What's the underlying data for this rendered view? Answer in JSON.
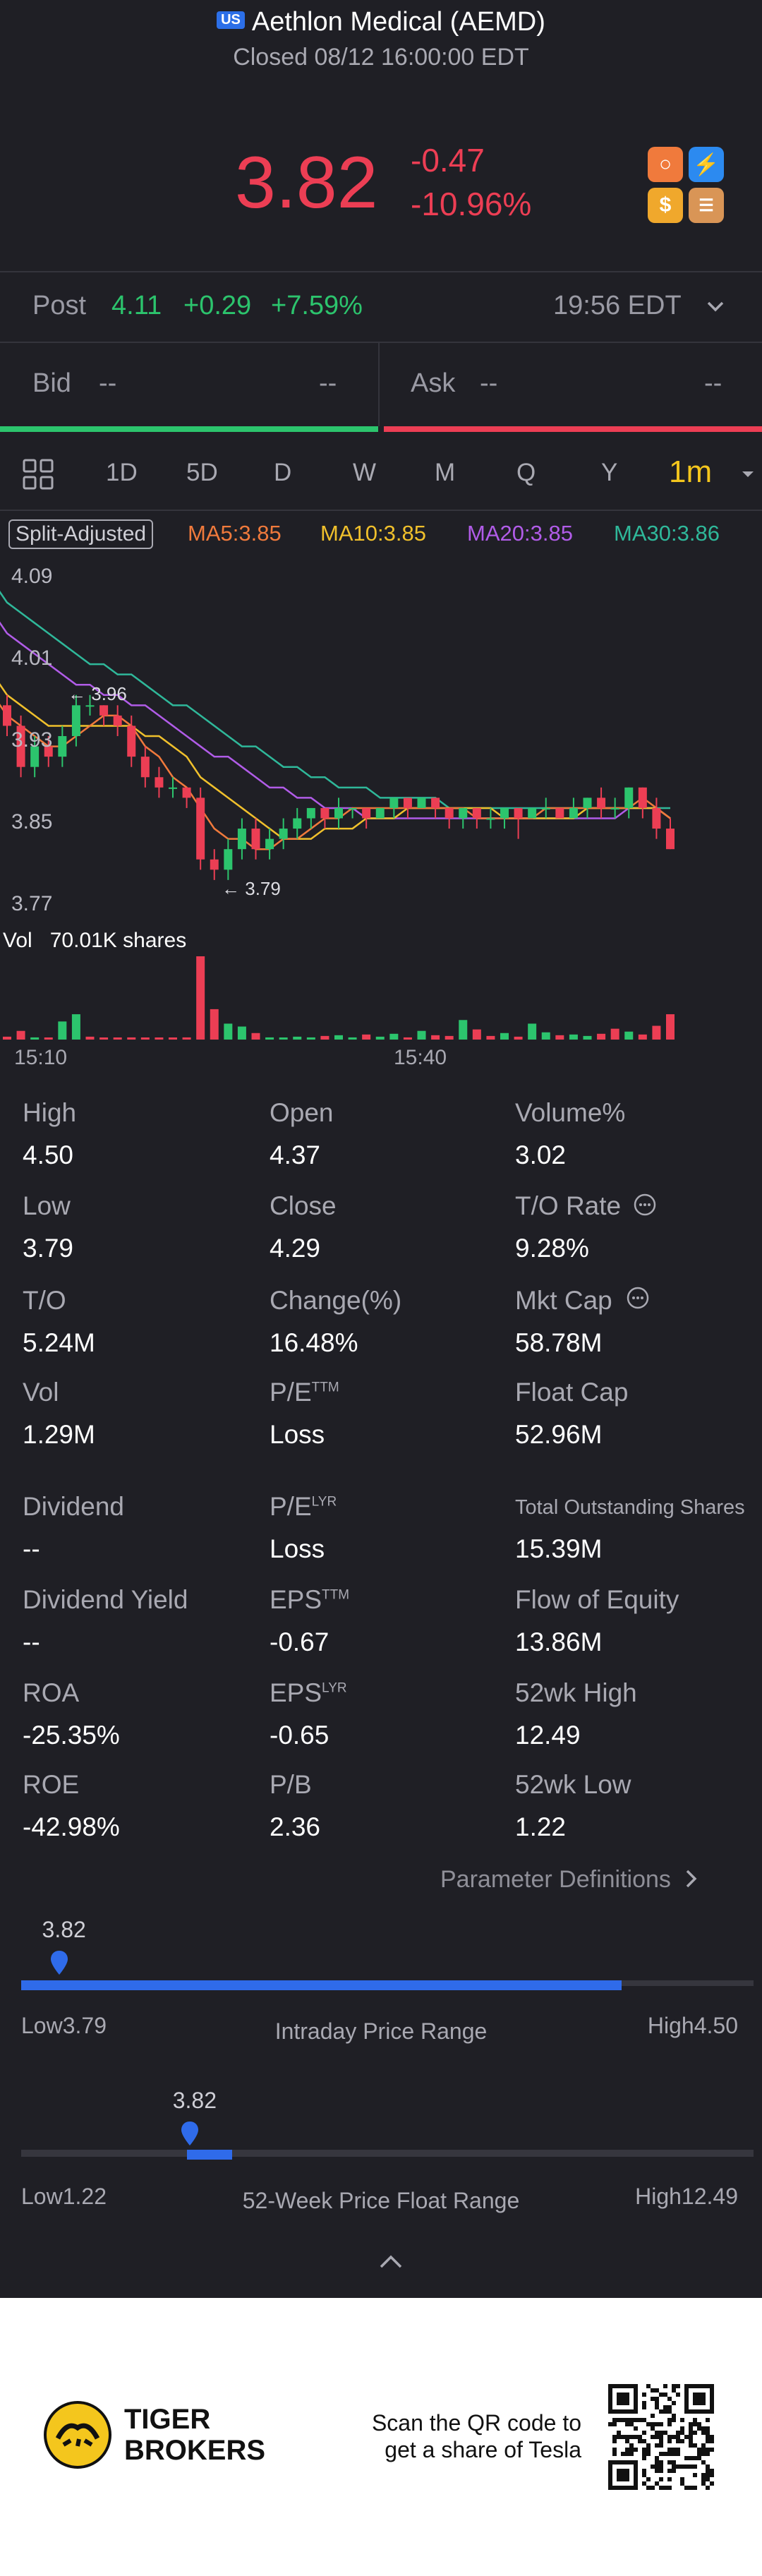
{
  "header": {
    "market_badge": "US",
    "title": "Aethlon Medical (AEMD)",
    "subtitle": "Closed 08/12 16:00:00 EDT"
  },
  "quote": {
    "price": "3.82",
    "change": "-0.47",
    "change_pct": "-10.96%",
    "color_down": "#ec3e54",
    "color_up": "#2cc46d"
  },
  "app_icons": [
    "moomoo-icon",
    "flash-icon",
    "dollar-icon",
    "books-icon"
  ],
  "post_market": {
    "label": "Post",
    "price": "4.11",
    "change": "+0.29",
    "change_pct": "+7.59%",
    "time": "19:56 EDT"
  },
  "bid_ask": {
    "bid_label": "Bid",
    "bid_price": "--",
    "bid_size": "--",
    "ask_label": "Ask",
    "ask_price": "--",
    "ask_size": "--",
    "bid_ratio": 0.5
  },
  "tabs": [
    "1D",
    "5D",
    "D",
    "W",
    "M",
    "Q",
    "Y",
    "1m"
  ],
  "active_tab": "1m",
  "chart_legend": {
    "adjust_label": "Split-Adjusted",
    "ma5": "MA5:3.85",
    "ma10": "MA10:3.85",
    "ma20": "MA20:3.85",
    "ma30": "MA30:3.86",
    "ma5_color": "#f07a3c",
    "ma10_color": "#f0c02c",
    "ma20_color": "#b15ce8",
    "ma30_color": "#2fb89a"
  },
  "volume_label": {
    "vol": "Vol",
    "amount": "70.01K shares"
  },
  "chart_data": {
    "type": "candlestick",
    "y_ticks": [
      "4.09",
      "4.01",
      "3.93",
      "3.85",
      "3.77"
    ],
    "ylim": [
      3.77,
      4.09
    ],
    "x_ticks": [
      "15:10",
      "15:40"
    ],
    "annotations": [
      {
        "label": "3.96",
        "price": 3.96
      },
      {
        "label": "3.79",
        "price": 3.79
      }
    ],
    "candles": [
      {
        "o": 3.96,
        "c": 3.94,
        "h": 3.97,
        "l": 3.93
      },
      {
        "o": 3.94,
        "c": 3.9,
        "h": 3.95,
        "l": 3.89
      },
      {
        "o": 3.9,
        "c": 3.92,
        "h": 3.93,
        "l": 3.89
      },
      {
        "o": 3.92,
        "c": 3.91,
        "h": 3.93,
        "l": 3.9
      },
      {
        "o": 3.91,
        "c": 3.93,
        "h": 3.94,
        "l": 3.9
      },
      {
        "o": 3.93,
        "c": 3.96,
        "h": 3.97,
        "l": 3.92
      },
      {
        "o": 3.96,
        "c": 3.96,
        "h": 3.97,
        "l": 3.95
      },
      {
        "o": 3.96,
        "c": 3.95,
        "h": 3.96,
        "l": 3.94
      },
      {
        "o": 3.95,
        "c": 3.94,
        "h": 3.96,
        "l": 3.93
      },
      {
        "o": 3.94,
        "c": 3.91,
        "h": 3.95,
        "l": 3.9
      },
      {
        "o": 3.91,
        "c": 3.89,
        "h": 3.92,
        "l": 3.88
      },
      {
        "o": 3.89,
        "c": 3.88,
        "h": 3.9,
        "l": 3.87
      },
      {
        "o": 3.88,
        "c": 3.88,
        "h": 3.89,
        "l": 3.87
      },
      {
        "o": 3.88,
        "c": 3.87,
        "h": 3.88,
        "l": 3.86
      },
      {
        "o": 3.87,
        "c": 3.81,
        "h": 3.88,
        "l": 3.8
      },
      {
        "o": 3.81,
        "c": 3.8,
        "h": 3.82,
        "l": 3.79
      },
      {
        "o": 3.8,
        "c": 3.82,
        "h": 3.83,
        "l": 3.79
      },
      {
        "o": 3.82,
        "c": 3.84,
        "h": 3.85,
        "l": 3.81
      },
      {
        "o": 3.84,
        "c": 3.82,
        "h": 3.85,
        "l": 3.81
      },
      {
        "o": 3.82,
        "c": 3.83,
        "h": 3.84,
        "l": 3.81
      },
      {
        "o": 3.83,
        "c": 3.84,
        "h": 3.85,
        "l": 3.82
      },
      {
        "o": 3.84,
        "c": 3.85,
        "h": 3.86,
        "l": 3.83
      },
      {
        "o": 3.85,
        "c": 3.86,
        "h": 3.86,
        "l": 3.84
      },
      {
        "o": 3.86,
        "c": 3.85,
        "h": 3.86,
        "l": 3.84
      },
      {
        "o": 3.85,
        "c": 3.86,
        "h": 3.87,
        "l": 3.84
      },
      {
        "o": 3.86,
        "c": 3.86,
        "h": 3.86,
        "l": 3.85
      },
      {
        "o": 3.86,
        "c": 3.85,
        "h": 3.86,
        "l": 3.84
      },
      {
        "o": 3.85,
        "c": 3.86,
        "h": 3.86,
        "l": 3.85
      },
      {
        "o": 3.86,
        "c": 3.87,
        "h": 3.87,
        "l": 3.85
      },
      {
        "o": 3.87,
        "c": 3.86,
        "h": 3.87,
        "l": 3.85
      },
      {
        "o": 3.86,
        "c": 3.87,
        "h": 3.87,
        "l": 3.86
      },
      {
        "o": 3.87,
        "c": 3.86,
        "h": 3.87,
        "l": 3.85
      },
      {
        "o": 3.86,
        "c": 3.85,
        "h": 3.86,
        "l": 3.84
      },
      {
        "o": 3.85,
        "c": 3.86,
        "h": 3.86,
        "l": 3.84
      },
      {
        "o": 3.86,
        "c": 3.85,
        "h": 3.86,
        "l": 3.84
      },
      {
        "o": 3.85,
        "c": 3.85,
        "h": 3.86,
        "l": 3.84
      },
      {
        "o": 3.85,
        "c": 3.86,
        "h": 3.86,
        "l": 3.84
      },
      {
        "o": 3.86,
        "c": 3.85,
        "h": 3.86,
        "l": 3.83
      },
      {
        "o": 3.85,
        "c": 3.86,
        "h": 3.86,
        "l": 3.85
      },
      {
        "o": 3.86,
        "c": 3.86,
        "h": 3.87,
        "l": 3.85
      },
      {
        "o": 3.86,
        "c": 3.85,
        "h": 3.86,
        "l": 3.85
      },
      {
        "o": 3.85,
        "c": 3.86,
        "h": 3.87,
        "l": 3.85
      },
      {
        "o": 3.86,
        "c": 3.87,
        "h": 3.87,
        "l": 3.85
      },
      {
        "o": 3.87,
        "c": 3.86,
        "h": 3.88,
        "l": 3.85
      },
      {
        "o": 3.86,
        "c": 3.86,
        "h": 3.87,
        "l": 3.85
      },
      {
        "o": 3.86,
        "c": 3.88,
        "h": 3.88,
        "l": 3.85
      },
      {
        "o": 3.88,
        "c": 3.86,
        "h": 3.88,
        "l": 3.85
      },
      {
        "o": 3.86,
        "c": 3.84,
        "h": 3.87,
        "l": 3.83
      },
      {
        "o": 3.84,
        "c": 3.82,
        "h": 3.85,
        "l": 3.82
      }
    ],
    "ma5": [
      3.95,
      3.94,
      3.93,
      3.92,
      3.92,
      3.93,
      3.94,
      3.95,
      3.95,
      3.94,
      3.92,
      3.91,
      3.89,
      3.88,
      3.86,
      3.84,
      3.83,
      3.83,
      3.82,
      3.82,
      3.83,
      3.83,
      3.84,
      3.85,
      3.85,
      3.86,
      3.86,
      3.86,
      3.86,
      3.86,
      3.86,
      3.86,
      3.86,
      3.86,
      3.85,
      3.85,
      3.85,
      3.85,
      3.85,
      3.86,
      3.86,
      3.86,
      3.86,
      3.86,
      3.86,
      3.86,
      3.87,
      3.86,
      3.85
    ],
    "ma10": [
      3.97,
      3.96,
      3.95,
      3.94,
      3.94,
      3.94,
      3.94,
      3.94,
      3.94,
      3.94,
      3.93,
      3.93,
      3.92,
      3.91,
      3.89,
      3.88,
      3.87,
      3.86,
      3.85,
      3.84,
      3.83,
      3.83,
      3.83,
      3.84,
      3.84,
      3.84,
      3.85,
      3.85,
      3.85,
      3.86,
      3.86,
      3.86,
      3.86,
      3.86,
      3.86,
      3.86,
      3.85,
      3.85,
      3.85,
      3.85,
      3.85,
      3.85,
      3.86,
      3.86,
      3.86,
      3.86,
      3.86,
      3.86,
      3.85
    ],
    "ma20": [
      4.03,
      4.02,
      4.01,
      4.0,
      3.99,
      3.98,
      3.98,
      3.97,
      3.97,
      3.96,
      3.96,
      3.95,
      3.94,
      3.93,
      3.92,
      3.91,
      3.91,
      3.9,
      3.89,
      3.88,
      3.88,
      3.87,
      3.87,
      3.86,
      3.86,
      3.86,
      3.85,
      3.85,
      3.85,
      3.85,
      3.85,
      3.85,
      3.85,
      3.85,
      3.85,
      3.85,
      3.85,
      3.85,
      3.85,
      3.85,
      3.85,
      3.85,
      3.85,
      3.85,
      3.85,
      3.86,
      3.86,
      3.86,
      3.85
    ],
    "ma30": [
      4.06,
      4.05,
      4.04,
      4.03,
      4.02,
      4.01,
      4.0,
      4.0,
      3.99,
      3.99,
      3.98,
      3.97,
      3.96,
      3.96,
      3.95,
      3.94,
      3.93,
      3.92,
      3.92,
      3.91,
      3.9,
      3.9,
      3.89,
      3.89,
      3.88,
      3.88,
      3.88,
      3.87,
      3.87,
      3.87,
      3.87,
      3.87,
      3.86,
      3.86,
      3.86,
      3.86,
      3.86,
      3.86,
      3.86,
      3.86,
      3.86,
      3.86,
      3.86,
      3.86,
      3.86,
      3.86,
      3.86,
      3.86,
      3.86
    ],
    "volume": [
      400,
      1200,
      300,
      200,
      2500,
      3500,
      400,
      200,
      150,
      300,
      200,
      100,
      250,
      300,
      11500,
      4200,
      2200,
      1800,
      900,
      300,
      200,
      400,
      300,
      500,
      600,
      300,
      700,
      400,
      800,
      300,
      1200,
      600,
      500,
      2700,
      1400,
      500,
      900,
      400,
      2200,
      1000,
      600,
      700,
      500,
      800,
      1500,
      1100,
      700,
      1900,
      3500
    ],
    "volume_dir": [
      "down",
      "down",
      "up",
      "down",
      "up",
      "up",
      "down",
      "down",
      "down",
      "down",
      "down",
      "down",
      "down",
      "down",
      "down",
      "down",
      "up",
      "up",
      "down",
      "up",
      "up",
      "up",
      "up",
      "down",
      "up",
      "up",
      "down",
      "up",
      "up",
      "down",
      "up",
      "down",
      "down",
      "up",
      "down",
      "down",
      "up",
      "down",
      "up",
      "up",
      "down",
      "up",
      "up",
      "down",
      "down",
      "up",
      "down",
      "down",
      "down"
    ]
  },
  "stats": [
    {
      "label": "High",
      "value": "4.50"
    },
    {
      "label": "Open",
      "value": "4.37"
    },
    {
      "label": "Volume%",
      "value": "3.02"
    },
    {
      "label": "Low",
      "value": "3.79"
    },
    {
      "label": "Close",
      "value": "4.29"
    },
    {
      "label": "T/O Rate",
      "value": "9.28%"
    },
    {
      "label": "T/O",
      "value": "5.24M"
    },
    {
      "label": "Change(%)",
      "value": "16.48%"
    },
    {
      "label": "Mkt Cap",
      "value": "58.78M"
    },
    {
      "label": "Vol",
      "value": "1.29M"
    },
    {
      "label": "P/E",
      "sup": "TTM",
      "value": "Loss"
    },
    {
      "label": "Float Cap",
      "value": "52.96M"
    },
    {
      "label": "Dividend",
      "value": "--"
    },
    {
      "label": "P/E",
      "sup": "LYR",
      "value": "Loss"
    },
    {
      "label": "Total Outstanding Shares",
      "value": "15.39M"
    },
    {
      "label": "Dividend Yield",
      "value": "--"
    },
    {
      "label": "EPS",
      "sup": "TTM",
      "value": "-0.67"
    },
    {
      "label": "Flow of Equity",
      "value": "13.86M"
    },
    {
      "label": "ROA",
      "value": "-25.35%"
    },
    {
      "label": "EPS",
      "sup": "LYR",
      "value": "-0.65"
    },
    {
      "label": "52wk High",
      "value": "12.49"
    },
    {
      "label": "ROE",
      "value": "-42.98%"
    },
    {
      "label": "P/B",
      "value": "2.36"
    },
    {
      "label": "52wk Low",
      "value": "1.22"
    }
  ],
  "param_link": "Parameter Definitions",
  "intraday_range": {
    "current": "3.82",
    "low_label": "Low",
    "low": "3.79",
    "high_label": "High",
    "high": "4.50",
    "title": "Intraday Price Range",
    "position": 0.04
  },
  "week52_range": {
    "current": "3.82",
    "low_label": "Low",
    "low": "1.22",
    "high_label": "High",
    "high": "12.49",
    "title": "52-Week Price Float Range",
    "position": 0.23
  },
  "footer": {
    "brand_line1": "TIGER",
    "brand_line2": "BROKERS",
    "qr_line1": "Scan the QR code to",
    "qr_line2": "get a share of Tesla"
  }
}
